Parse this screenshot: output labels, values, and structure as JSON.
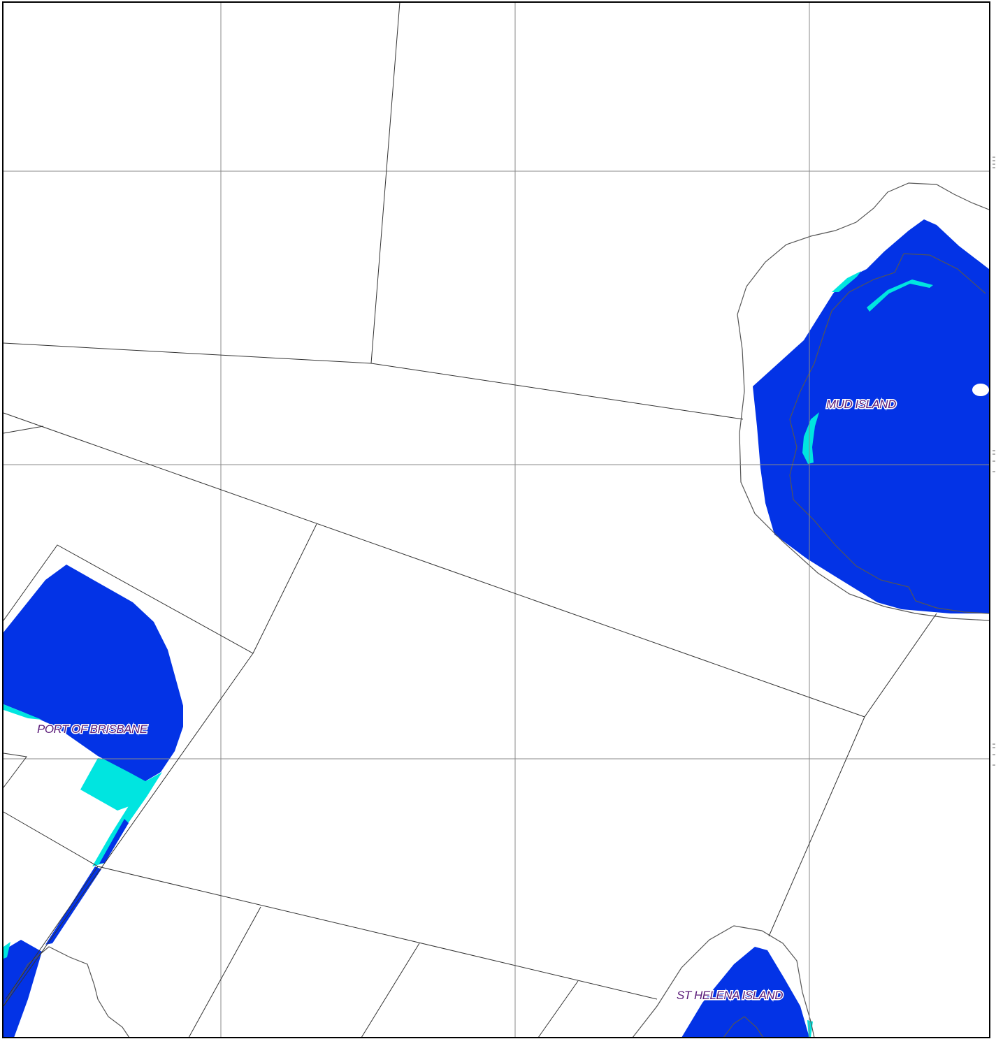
{
  "map": {
    "place_labels": {
      "mud_island": "MUD ISLAND",
      "port_of_brisbane": "PORT OF BRISBANE",
      "st_helena_island": "ST HELENA ISLAND"
    },
    "colors": {
      "deep_fill": "#0333e6",
      "shallow_fill": "#00e5e0",
      "grid": "#888888",
      "boundary": "#333333",
      "coast": "#555555",
      "frame": "#000000",
      "label_text": "#5a1a78"
    }
  }
}
